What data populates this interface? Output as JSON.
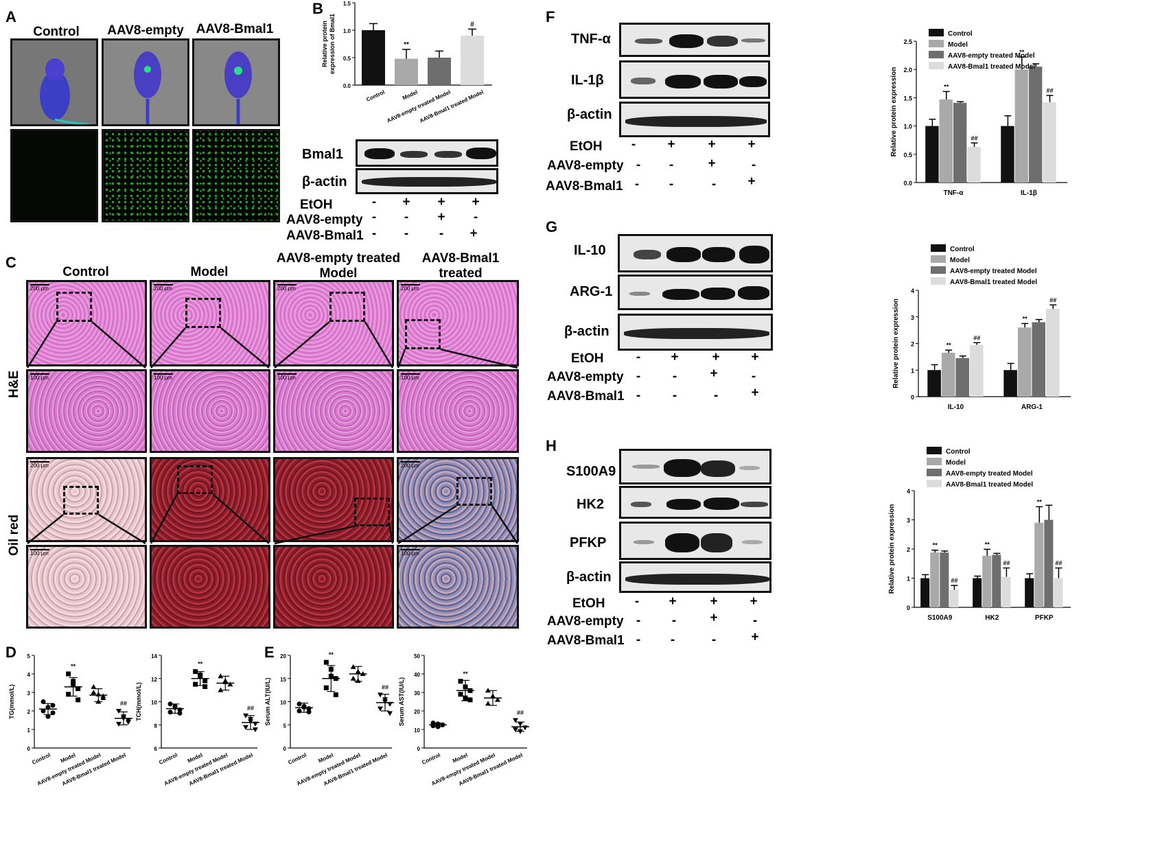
{
  "panels": {
    "A": "A",
    "B": "B",
    "C": "C",
    "D": "D",
    "E": "E",
    "F": "F",
    "G": "G",
    "H": "H"
  },
  "panelA": {
    "headers": [
      "Control",
      "AAV8-empty",
      "AAV8-Bmal1"
    ]
  },
  "panelC": {
    "headers": [
      "Control",
      "Model",
      "AAV8-empty treated\nModel",
      "AAV8-Bmal1 treated\nModel"
    ],
    "row_labels": [
      "H&E",
      "Oil red"
    ],
    "scale_200": "200 μm",
    "scale_100": "100 μm"
  },
  "western_conditions": {
    "etoh": "EtOH",
    "empty": "AAV8-empty",
    "bmal": "AAV8-Bmal1",
    "etoh_signs": [
      "-",
      "+",
      "+",
      "+"
    ],
    "empty_signs": [
      "-",
      "-",
      "+",
      "-"
    ],
    "bmal_signs": [
      "-",
      "-",
      "-",
      "+"
    ]
  },
  "blotB": {
    "labels": [
      "Bmal1",
      "β-actin"
    ]
  },
  "blotF": {
    "labels": [
      "TNF-α",
      "IL-1β",
      "β-actin"
    ]
  },
  "blotG": {
    "labels": [
      "IL-10",
      "ARG-1",
      "β-actin"
    ]
  },
  "blotH": {
    "labels": [
      "S100A9",
      "HK2",
      "PFKP",
      "β-actin"
    ]
  },
  "legend": [
    "Control",
    "Model",
    "AAV8-empty treated Model",
    "AAV8-Bmal1 treated Model"
  ],
  "colors": {
    "control": "#111111",
    "model": "#a9a9a9",
    "empty": "#6e6e6e",
    "bmal": "#dcdcdc"
  },
  "chart_data": [
    {
      "id": "B",
      "type": "bar",
      "ylabel": "Relative protein\nexpression of Bmal1",
      "categories": [
        "Control",
        "Model",
        "AAV8-empty treated Model",
        "AAV8-Bmal1 treated Model"
      ],
      "values": [
        1.0,
        0.48,
        0.5,
        0.9
      ],
      "errors": [
        0.12,
        0.17,
        0.12,
        0.12
      ],
      "marks": [
        "",
        "**",
        "",
        "#"
      ],
      "ylim": [
        0,
        1.5
      ],
      "yticks": [
        "0.0",
        "0.5",
        "1.0",
        "1.5"
      ]
    },
    {
      "id": "F",
      "type": "bar",
      "ylabel": "Relative protein expression",
      "categories": [
        "TNF-α",
        "IL-1β"
      ],
      "series": [
        {
          "name": "Control",
          "values": [
            1.0,
            1.0
          ],
          "errors": [
            0.12,
            0.18
          ]
        },
        {
          "name": "Model",
          "values": [
            1.47,
            2.0
          ],
          "errors": [
            0.14,
            0.22
          ]
        },
        {
          "name": "AAV8-empty treated Model",
          "values": [
            1.41,
            2.05
          ],
          "errors": [
            0.02,
            0.05
          ]
        },
        {
          "name": "AAV8-Bmal1 treated Model",
          "values": [
            0.63,
            1.42
          ],
          "errors": [
            0.07,
            0.12
          ]
        }
      ],
      "marks": [
        [
          "",
          "**",
          "",
          "##"
        ],
        [
          "",
          "**",
          "",
          "##"
        ]
      ],
      "ylim": [
        0,
        2.5
      ],
      "yticks": [
        "0.0",
        "0.5",
        "1.0",
        "1.5",
        "2.0",
        "2.5"
      ]
    },
    {
      "id": "G",
      "type": "bar",
      "ylabel": "Relative protein expression",
      "categories": [
        "IL-10",
        "ARG-1"
      ],
      "series": [
        {
          "name": "Control",
          "values": [
            1.0,
            1.0
          ],
          "errors": [
            0.2,
            0.25
          ]
        },
        {
          "name": "Model",
          "values": [
            1.65,
            2.6
          ],
          "errors": [
            0.1,
            0.15
          ]
        },
        {
          "name": "AAV8-empty treated Model",
          "values": [
            1.45,
            2.8
          ],
          "errors": [
            0.08,
            0.1
          ]
        },
        {
          "name": "AAV8-Bmal1 treated Model",
          "values": [
            1.95,
            3.3
          ],
          "errors": [
            0.08,
            0.15
          ]
        }
      ],
      "marks": [
        [
          "",
          "**",
          "",
          "##"
        ],
        [
          "",
          "**",
          "",
          "##"
        ]
      ],
      "ylim": [
        0,
        4
      ],
      "yticks": [
        "0",
        "1",
        "2",
        "3",
        "4"
      ]
    },
    {
      "id": "H",
      "type": "bar",
      "ylabel": "Relative protein expression",
      "categories": [
        "S100A9",
        "HK2",
        "PFKP"
      ],
      "series": [
        {
          "name": "Control",
          "values": [
            1.0,
            1.0,
            1.0
          ],
          "errors": [
            0.12,
            0.07,
            0.15
          ]
        },
        {
          "name": "Model",
          "values": [
            1.88,
            1.77,
            2.9
          ],
          "errors": [
            0.08,
            0.22,
            0.55
          ]
        },
        {
          "name": "AAV8-empty treated Model",
          "values": [
            1.88,
            1.8,
            3.0
          ],
          "errors": [
            0.05,
            0.05,
            0.5
          ]
        },
        {
          "name": "AAV8-Bmal1 treated Model",
          "values": [
            0.6,
            1.05,
            1.0
          ],
          "errors": [
            0.15,
            0.3,
            0.35
          ]
        }
      ],
      "marks": [
        [
          "",
          "**",
          "",
          "##"
        ],
        [
          "",
          "**",
          "",
          "##"
        ],
        [
          "",
          "**",
          "",
          "##"
        ]
      ],
      "ylim": [
        0,
        4
      ],
      "yticks": [
        "0",
        "1",
        "2",
        "3",
        "4"
      ]
    },
    {
      "id": "D1",
      "type": "scatter",
      "ylabel": "TG(mmol/L)",
      "categories": [
        "Control",
        "Model",
        "AAV8-empty treated Model",
        "AAV8-Bmal1 treated Model"
      ],
      "means": [
        2.1,
        3.3,
        2.85,
        1.6
      ],
      "sd": [
        0.3,
        0.5,
        0.35,
        0.35
      ],
      "points": [
        [
          2.5,
          2.2,
          1.9,
          2.0,
          1.7,
          2.3
        ],
        [
          4.0,
          3.6,
          3.2,
          2.9,
          3.4,
          2.6
        ],
        [
          3.3,
          2.9,
          2.7,
          3.0,
          2.5,
          2.8
        ],
        [
          2.0,
          1.7,
          1.5,
          1.3,
          1.6,
          1.4
        ]
      ],
      "marks": [
        "",
        "**",
        "",
        "##"
      ],
      "ylim": [
        0,
        5
      ],
      "yticks": [
        "0",
        "1",
        "2",
        "3",
        "4",
        "5"
      ]
    },
    {
      "id": "D2",
      "type": "scatter",
      "ylabel": "TCH(mmol/L)",
      "categories": [
        "Control",
        "Model",
        "AAV8-empty treated Model",
        "AAV8-Bmal1 treated Model"
      ],
      "means": [
        9.4,
        12.0,
        11.6,
        8.2
      ],
      "sd": [
        0.4,
        0.6,
        0.6,
        0.6
      ],
      "points": [
        [
          9.8,
          9.6,
          9.3,
          9.1,
          9.5,
          9.0
        ],
        [
          12.6,
          12.3,
          11.8,
          11.5,
          12.2,
          11.3
        ],
        [
          12.2,
          11.8,
          11.5,
          11.0,
          11.7
        ],
        [
          8.8,
          8.5,
          8.1,
          7.8,
          8.3,
          7.6
        ]
      ],
      "marks": [
        "",
        "**",
        "",
        "##"
      ],
      "ylim": [
        6,
        14
      ],
      "yticks": [
        "6",
        "8",
        "10",
        "12",
        "14"
      ]
    },
    {
      "id": "E1",
      "type": "scatter",
      "ylabel": "Serum ALT(IU/L)",
      "categories": [
        "Control",
        "Model",
        "AAV8-empty treated Model",
        "AAV8-Bmal1 treated Model"
      ],
      "means": [
        8.7,
        15.0,
        16.0,
        9.8
      ],
      "sd": [
        1.0,
        2.8,
        1.6,
        1.8
      ],
      "points": [
        [
          9.5,
          9.0,
          8.5,
          8.0,
          8.8,
          7.8
        ],
        [
          18.5,
          17.0,
          15.0,
          13.0,
          15.5,
          11.5
        ],
        [
          17.5,
          16.5,
          16.0,
          15.0,
          14.5
        ],
        [
          11.5,
          10.5,
          9.5,
          8.5,
          10.0,
          7.5
        ]
      ],
      "marks": [
        "",
        "**",
        "",
        "##"
      ],
      "ylim": [
        0,
        20
      ],
      "yticks": [
        "0",
        "5",
        "10",
        "15",
        "20"
      ]
    },
    {
      "id": "E2",
      "type": "scatter",
      "ylabel": "Serum AST(IU/L)",
      "categories": [
        "Control",
        "Model",
        "AAV8-empty treated Model",
        "AAV8-Bmal1 treated Model"
      ],
      "means": [
        12.5,
        31.0,
        27.0,
        11.5
      ],
      "sd": [
        1.0,
        5.5,
        4.0,
        2.5
      ],
      "points": [
        [
          13.5,
          13.0,
          12.5,
          12.0,
          11.5
        ],
        [
          36.0,
          33.0,
          31.0,
          29.0,
          27.0,
          26.0
        ],
        [
          31.0,
          28.0,
          26.0,
          24.0
        ],
        [
          15.0,
          13.0,
          11.0,
          10.0,
          9.0
        ]
      ],
      "marks": [
        "",
        "**",
        "",
        "##"
      ],
      "ylim": [
        0,
        50
      ],
      "yticks": [
        "0",
        "10",
        "20",
        "30",
        "40",
        "50"
      ]
    }
  ]
}
